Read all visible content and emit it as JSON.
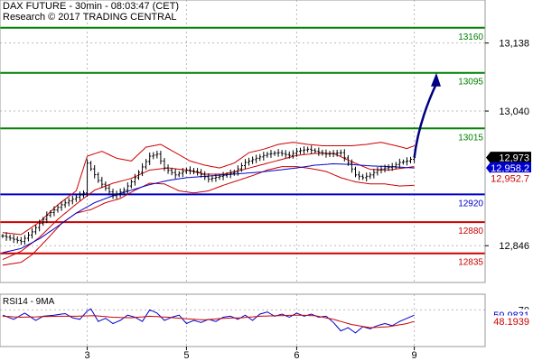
{
  "header": {
    "title": "DAX FUTURE - 30min - 08:03:47 (CET)",
    "subtitle": "Research © 2017 TRADING CENTRAL"
  },
  "colors": {
    "resistance": "#008000",
    "support_blue": "#0000cc",
    "support_red": "#cc0000",
    "price": "#000000",
    "bollinger": "#cc0000",
    "ma_fast": "#cc0000",
    "ma_slow": "#0000cc",
    "arrow": "#000080",
    "rsi_line": "#0000cc",
    "rsi_ma": "#cc0000",
    "last_price_tag": "#000000",
    "ma_tag": "#0000cc",
    "red_tag": "#cc0000",
    "rsi_tag": "#0000cc",
    "rsi_ma_tag": "#cc0000"
  },
  "chart_data": {
    "type": "line",
    "price_axis": {
      "ylim": [
        12793,
        13200
      ],
      "tick_labels": [
        "13,138",
        "13,040",
        "12,846"
      ],
      "tick_values": [
        13138,
        13040,
        12846
      ]
    },
    "x_axis": {
      "tick_labels": [
        "3",
        "5",
        "6",
        "9"
      ],
      "tick_positions": [
        23,
        50,
        80,
        112
      ],
      "n_bars": 118
    },
    "levels": [
      {
        "label": "13160",
        "value": 13160,
        "color": "#008000"
      },
      {
        "label": "13095",
        "value": 13095,
        "color": "#008000"
      },
      {
        "label": "13015",
        "value": 13015,
        "color": "#008000"
      },
      {
        "label": "12920",
        "value": 12920,
        "color": "#0000cc"
      },
      {
        "label": "12880",
        "value": 12880,
        "color": "#cc0000"
      },
      {
        "label": "12835",
        "value": 12835,
        "color": "#cc0000"
      }
    ],
    "price_tags": [
      {
        "label": "12,973",
        "value": 12973,
        "kind": "last"
      },
      {
        "label": "12,958.2",
        "value": 12958,
        "kind": "ma"
      },
      {
        "label": "12,952.7",
        "value": 12943,
        "kind": "red"
      }
    ],
    "price_anchors": [
      [
        0,
        12860
      ],
      [
        5,
        12852
      ],
      [
        8,
        12866
      ],
      [
        12,
        12890
      ],
      [
        16,
        12905
      ],
      [
        20,
        12916
      ],
      [
        22,
        12922
      ],
      [
        23,
        12965
      ],
      [
        26,
        12940
      ],
      [
        30,
        12918
      ],
      [
        33,
        12926
      ],
      [
        36,
        12944
      ],
      [
        40,
        12975
      ],
      [
        42,
        12978
      ],
      [
        44,
        12958
      ],
      [
        47,
        12948
      ],
      [
        50,
        12955
      ],
      [
        53,
        12952
      ],
      [
        56,
        12942
      ],
      [
        60,
        12947
      ],
      [
        63,
        12952
      ],
      [
        66,
        12966
      ],
      [
        69,
        12972
      ],
      [
        72,
        12978
      ],
      [
        75,
        12980
      ],
      [
        78,
        12976
      ],
      [
        80,
        12982
      ],
      [
        83,
        12985
      ],
      [
        85,
        12982
      ],
      [
        88,
        12978
      ],
      [
        92,
        12980
      ],
      [
        94,
        12965
      ],
      [
        96,
        12948
      ],
      [
        98,
        12944
      ],
      [
        100,
        12948
      ],
      [
        102,
        12955
      ],
      [
        104,
        12958
      ],
      [
        106,
        12960
      ],
      [
        108,
        12966
      ],
      [
        110,
        12968
      ],
      [
        112,
        12973
      ]
    ],
    "ma_slow": [
      [
        0,
        12836
      ],
      [
        5,
        12842
      ],
      [
        10,
        12856
      ],
      [
        15,
        12874
      ],
      [
        20,
        12893
      ],
      [
        25,
        12908
      ],
      [
        30,
        12918
      ],
      [
        35,
        12926
      ],
      [
        40,
        12934
      ],
      [
        45,
        12940
      ],
      [
        50,
        12944
      ],
      [
        55,
        12946
      ],
      [
        60,
        12948
      ],
      [
        65,
        12950
      ],
      [
        70,
        12952
      ],
      [
        75,
        12955
      ],
      [
        80,
        12958
      ],
      [
        85,
        12962
      ],
      [
        90,
        12964
      ],
      [
        95,
        12963
      ],
      [
        100,
        12961
      ],
      [
        105,
        12960
      ],
      [
        112,
        12958
      ]
    ],
    "ma_fast": [
      [
        0,
        12826
      ],
      [
        5,
        12838
      ],
      [
        10,
        12858
      ],
      [
        15,
        12884
      ],
      [
        20,
        12906
      ],
      [
        25,
        12926
      ],
      [
        30,
        12936
      ],
      [
        35,
        12943
      ],
      [
        40,
        12955
      ],
      [
        45,
        12958
      ],
      [
        50,
        12955
      ],
      [
        55,
        12949
      ],
      [
        60,
        12949
      ],
      [
        65,
        12955
      ],
      [
        70,
        12962
      ],
      [
        75,
        12969
      ],
      [
        80,
        12976
      ],
      [
        85,
        12979
      ],
      [
        90,
        12979
      ],
      [
        95,
        12967
      ],
      [
        100,
        12956
      ],
      [
        105,
        12955
      ],
      [
        112,
        12960
      ]
    ],
    "bb_upper": [
      [
        0,
        12865
      ],
      [
        5,
        12862
      ],
      [
        10,
        12880
      ],
      [
        15,
        12905
      ],
      [
        20,
        12925
      ],
      [
        23,
        12975
      ],
      [
        27,
        12982
      ],
      [
        31,
        12972
      ],
      [
        35,
        12968
      ],
      [
        39,
        12988
      ],
      [
        43,
        12992
      ],
      [
        47,
        12980
      ],
      [
        51,
        12968
      ],
      [
        55,
        12962
      ],
      [
        59,
        12958
      ],
      [
        63,
        12965
      ],
      [
        67,
        12980
      ],
      [
        71,
        12985
      ],
      [
        75,
        12992
      ],
      [
        79,
        12995
      ],
      [
        83,
        12992
      ],
      [
        87,
        12990
      ],
      [
        91,
        12990
      ],
      [
        95,
        12990
      ],
      [
        99,
        12992
      ],
      [
        103,
        12995
      ],
      [
        107,
        12990
      ],
      [
        110,
        12986
      ],
      [
        112,
        12990
      ]
    ],
    "bb_lower": [
      [
        0,
        12818
      ],
      [
        5,
        12822
      ],
      [
        8,
        12833
      ],
      [
        12,
        12855
      ],
      [
        16,
        12878
      ],
      [
        20,
        12893
      ],
      [
        24,
        12898
      ],
      [
        28,
        12908
      ],
      [
        32,
        12914
      ],
      [
        36,
        12926
      ],
      [
        40,
        12936
      ],
      [
        44,
        12935
      ],
      [
        48,
        12925
      ],
      [
        52,
        12922
      ],
      [
        56,
        12925
      ],
      [
        60,
        12933
      ],
      [
        64,
        12940
      ],
      [
        68,
        12947
      ],
      [
        72,
        12955
      ],
      [
        76,
        12960
      ],
      [
        80,
        12960
      ],
      [
        84,
        12957
      ],
      [
        88,
        12953
      ],
      [
        92,
        12944
      ],
      [
        96,
        12938
      ],
      [
        100,
        12935
      ],
      [
        104,
        12935
      ],
      [
        108,
        12932
      ],
      [
        112,
        12933
      ]
    ],
    "arrow": {
      "from": [
        112,
        12973
      ],
      "to": [
        118,
        13095
      ]
    },
    "rsi": {
      "label": "RSI14 - 9MA",
      "ylim": [
        0,
        100
      ],
      "tick_labels": [
        "70"
      ],
      "tick_values": [
        70
      ],
      "tags": [
        {
          "label": "59.9831",
          "value": 59.98,
          "kind": "rsi"
        },
        {
          "label": "48.1939",
          "value": 48.19,
          "kind": "ma"
        }
      ],
      "rsi_anchors": [
        [
          0,
          60
        ],
        [
          3,
          52
        ],
        [
          6,
          64
        ],
        [
          9,
          50
        ],
        [
          11,
          58
        ],
        [
          14,
          60
        ],
        [
          17,
          63
        ],
        [
          19,
          55
        ],
        [
          21,
          52
        ],
        [
          23,
          68
        ],
        [
          24,
          72
        ],
        [
          26,
          48
        ],
        [
          28,
          54
        ],
        [
          30,
          44
        ],
        [
          32,
          50
        ],
        [
          34,
          60
        ],
        [
          36,
          56
        ],
        [
          38,
          48
        ],
        [
          40,
          70
        ],
        [
          42,
          64
        ],
        [
          44,
          50
        ],
        [
          46,
          56
        ],
        [
          48,
          60
        ],
        [
          50,
          44
        ],
        [
          52,
          50
        ],
        [
          54,
          46
        ],
        [
          56,
          52
        ],
        [
          58,
          48
        ],
        [
          60,
          56
        ],
        [
          62,
          58
        ],
        [
          64,
          52
        ],
        [
          66,
          60
        ],
        [
          68,
          50
        ],
        [
          70,
          62
        ],
        [
          72,
          66
        ],
        [
          74,
          58
        ],
        [
          76,
          62
        ],
        [
          78,
          56
        ],
        [
          80,
          64
        ],
        [
          82,
          58
        ],
        [
          84,
          62
        ],
        [
          86,
          56
        ],
        [
          88,
          58
        ],
        [
          90,
          46
        ],
        [
          92,
          30
        ],
        [
          94,
          36
        ],
        [
          96,
          26
        ],
        [
          98,
          38
        ],
        [
          100,
          34
        ],
        [
          102,
          40
        ],
        [
          104,
          44
        ],
        [
          106,
          40
        ],
        [
          108,
          48
        ],
        [
          110,
          54
        ],
        [
          112,
          60
        ]
      ],
      "ma_anchors": [
        [
          0,
          58
        ],
        [
          5,
          56
        ],
        [
          10,
          57
        ],
        [
          15,
          58
        ],
        [
          20,
          58
        ],
        [
          25,
          59
        ],
        [
          30,
          56
        ],
        [
          35,
          55
        ],
        [
          40,
          58
        ],
        [
          45,
          56
        ],
        [
          50,
          53
        ],
        [
          55,
          51
        ],
        [
          60,
          54
        ],
        [
          65,
          55
        ],
        [
          70,
          58
        ],
        [
          75,
          59
        ],
        [
          80,
          60
        ],
        [
          85,
          59
        ],
        [
          90,
          52
        ],
        [
          95,
          42
        ],
        [
          100,
          36
        ],
        [
          105,
          38
        ],
        [
          110,
          44
        ],
        [
          112,
          48
        ]
      ]
    }
  }
}
